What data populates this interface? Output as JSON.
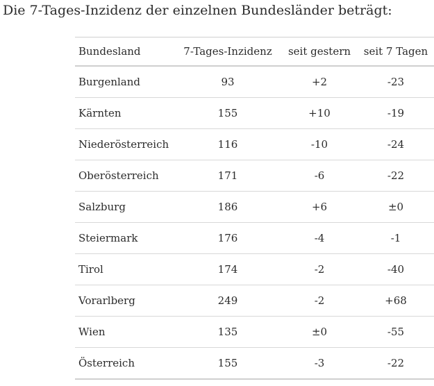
{
  "heading": "Die 7-Tages-Inzidenz der einzelnen Bundesländer beträgt:",
  "table": {
    "headers": [
      "Bundesland",
      "7-Tages-Inzidenz",
      "seit gestern",
      "seit 7 Tagen"
    ],
    "rows": [
      [
        "Burgenland",
        "93",
        "+2",
        "-23"
      ],
      [
        "Kärnten",
        "155",
        "+10",
        "-19"
      ],
      [
        "Niederösterreich",
        "116",
        "-10",
        "-24"
      ],
      [
        "Oberösterreich",
        "171",
        "-6",
        "-22"
      ],
      [
        "Salzburg",
        "186",
        "+6",
        "±0"
      ],
      [
        "Steiermark",
        "176",
        "-4",
        "-1"
      ],
      [
        "Tirol",
        "174",
        "-2",
        "-40"
      ],
      [
        "Vorarlberg",
        "249",
        "-2",
        "+68"
      ],
      [
        "Wien",
        "135",
        "±0",
        "-55"
      ],
      [
        "Österreich",
        "155",
        "-3",
        "-22"
      ]
    ]
  }
}
